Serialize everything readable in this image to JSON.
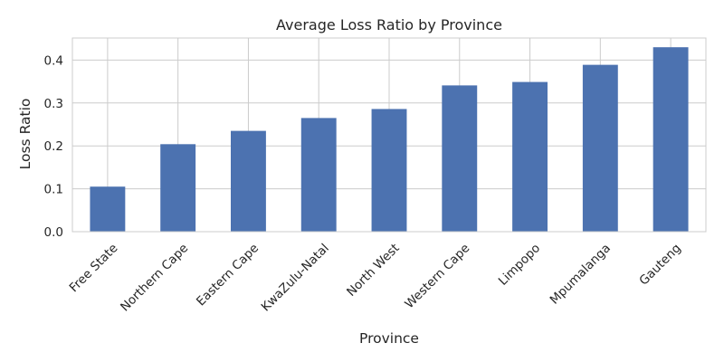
{
  "chart_data": {
    "type": "bar",
    "title": "Average Loss Ratio by Province",
    "xlabel": "Province",
    "ylabel": "Loss Ratio",
    "categories": [
      "Free State",
      "Northern Cape",
      "Eastern Cape",
      "KwaZulu-Natal",
      "North West",
      "Western Cape",
      "Limpopo",
      "Mpumalanga",
      "Gauteng"
    ],
    "values": [
      0.105,
      0.204,
      0.235,
      0.265,
      0.286,
      0.341,
      0.349,
      0.389,
      0.43
    ],
    "ylim": [
      0,
      0.4515
    ],
    "yticks": [
      0.0,
      0.1,
      0.2,
      0.3,
      0.4
    ],
    "ytick_labels": [
      "0.0",
      "0.1",
      "0.2",
      "0.3",
      "0.4"
    ],
    "grid": true,
    "colors": {
      "bar": "#4c72b0",
      "grid": "#cccccc",
      "frame": "#cccccc"
    }
  }
}
